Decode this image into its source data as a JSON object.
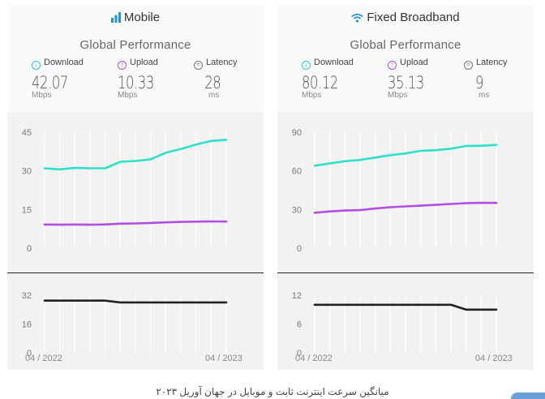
{
  "panels": [
    {
      "title": "Mobile",
      "subtitle": "Global Performance",
      "metrics": [
        {
          "label": "Download",
          "value": "42.07",
          "unit": "Mbps"
        },
        {
          "label": "Upload",
          "value": "10.33",
          "unit": "Mbps"
        },
        {
          "label": "Latency",
          "value": "28",
          "unit": "ms"
        }
      ],
      "x_start": "04 / 2022",
      "x_end": "04 / 2023"
    },
    {
      "title": "Fixed Broadband",
      "subtitle": "Global Performance",
      "metrics": [
        {
          "label": "Download",
          "value": "80.12",
          "unit": "Mbps"
        },
        {
          "label": "Upload",
          "value": "35.13",
          "unit": "Mbps"
        },
        {
          "label": "Latency",
          "value": "9",
          "unit": "ms"
        }
      ],
      "x_start": "04 / 2022",
      "x_end": "04 / 2023"
    }
  ],
  "caption": "میانگین سرعت اینترنت ثابت و موبایل در جهان آوریل ۲۰۲۳",
  "colors": {
    "download": "#2ee0c8",
    "upload": "#b14fe0",
    "latency": "#222222",
    "grid": "#ffffff"
  },
  "chart_data": [
    {
      "type": "line",
      "panel": "Mobile",
      "x": [
        "04/2022",
        "05/2022",
        "06/2022",
        "07/2022",
        "08/2022",
        "09/2022",
        "10/2022",
        "11/2022",
        "12/2022",
        "01/2023",
        "02/2023",
        "03/2023",
        "04/2023"
      ],
      "ylim": [
        0,
        45
      ],
      "yticks": [
        0,
        15,
        30,
        45
      ],
      "series": [
        {
          "name": "Download",
          "values": [
            31.0,
            30.6,
            31.2,
            31.0,
            31.0,
            33.5,
            33.8,
            34.5,
            37.0,
            38.5,
            40.2,
            41.6,
            42.07
          ]
        },
        {
          "name": "Upload",
          "values": [
            9.2,
            9.1,
            9.2,
            9.1,
            9.2,
            9.5,
            9.6,
            9.8,
            10.0,
            10.2,
            10.3,
            10.4,
            10.33
          ]
        }
      ],
      "grid": true
    },
    {
      "type": "line",
      "panel": "Mobile",
      "x": [
        "04/2022",
        "05/2022",
        "06/2022",
        "07/2022",
        "08/2022",
        "09/2022",
        "10/2022",
        "11/2022",
        "12/2022",
        "01/2023",
        "02/2023",
        "03/2023",
        "04/2023"
      ],
      "ylim": [
        0,
        32
      ],
      "yticks": [
        0,
        16,
        32
      ],
      "series": [
        {
          "name": "Latency",
          "values": [
            29,
            29,
            29,
            29,
            29,
            28,
            28,
            28,
            28,
            28,
            28,
            28,
            28
          ]
        }
      ],
      "grid": true
    },
    {
      "type": "line",
      "panel": "Fixed Broadband",
      "x": [
        "04/2022",
        "05/2022",
        "06/2022",
        "07/2022",
        "08/2022",
        "09/2022",
        "10/2022",
        "11/2022",
        "12/2022",
        "01/2023",
        "02/2023",
        "03/2023",
        "04/2023"
      ],
      "ylim": [
        0,
        90
      ],
      "yticks": [
        0,
        30,
        60,
        90
      ],
      "series": [
        {
          "name": "Download",
          "values": [
            64.0,
            65.8,
            67.5,
            68.5,
            70.3,
            72.2,
            73.5,
            75.5,
            76.0,
            77.2,
            79.3,
            79.5,
            80.12
          ]
        },
        {
          "name": "Upload",
          "values": [
            27.5,
            28.5,
            29.2,
            29.5,
            30.8,
            31.8,
            32.4,
            33.0,
            33.6,
            34.3,
            34.9,
            35.2,
            35.13
          ]
        }
      ],
      "grid": true
    },
    {
      "type": "line",
      "panel": "Fixed Broadband",
      "x": [
        "04/2022",
        "05/2022",
        "06/2022",
        "07/2022",
        "08/2022",
        "09/2022",
        "10/2022",
        "11/2022",
        "12/2022",
        "01/2023",
        "02/2023",
        "03/2023",
        "04/2023"
      ],
      "ylim": [
        0,
        12
      ],
      "yticks": [
        0,
        6,
        12
      ],
      "series": [
        {
          "name": "Latency",
          "values": [
            10,
            10,
            10,
            10,
            10,
            10,
            10,
            10,
            10,
            10,
            9,
            9,
            9
          ]
        }
      ],
      "grid": true
    }
  ]
}
